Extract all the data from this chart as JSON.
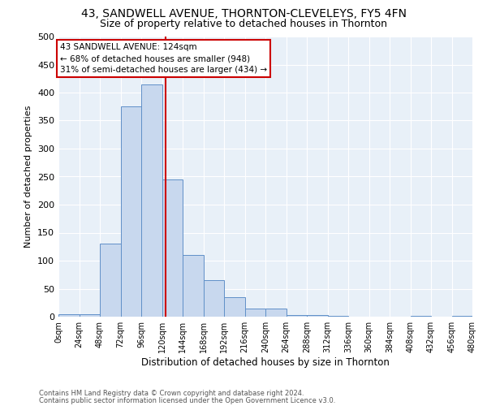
{
  "title": "43, SANDWELL AVENUE, THORNTON-CLEVELEYS, FY5 4FN",
  "subtitle": "Size of property relative to detached houses in Thornton",
  "xlabel": "Distribution of detached houses by size in Thornton",
  "ylabel": "Number of detached properties",
  "bin_edges": [
    0,
    24,
    48,
    72,
    96,
    120,
    144,
    168,
    192,
    216,
    240,
    264,
    288,
    312,
    336,
    360,
    384,
    408,
    432,
    456,
    480
  ],
  "counts": [
    5,
    5,
    130,
    375,
    415,
    245,
    110,
    65,
    35,
    15,
    15,
    3,
    3,
    1,
    0,
    0,
    0,
    1,
    0,
    1
  ],
  "property_size": 124,
  "vline_color": "#cc0000",
  "bar_facecolor": "#c8d8ee",
  "bar_edgecolor": "#6090c8",
  "annotation_text": "43 SANDWELL AVENUE: 124sqm\n← 68% of detached houses are smaller (948)\n31% of semi-detached houses are larger (434) →",
  "annotation_box_edgecolor": "#cc0000",
  "annotation_box_facecolor": "#ffffff",
  "ylim": [
    0,
    500
  ],
  "yticks": [
    0,
    50,
    100,
    150,
    200,
    250,
    300,
    350,
    400,
    450,
    500
  ],
  "bg_color": "#e8f0f8",
  "grid_color": "#ffffff",
  "title_fontsize": 10,
  "subtitle_fontsize": 9,
  "footer_line1": "Contains HM Land Registry data © Crown copyright and database right 2024.",
  "footer_line2": "Contains public sector information licensed under the Open Government Licence v3.0."
}
